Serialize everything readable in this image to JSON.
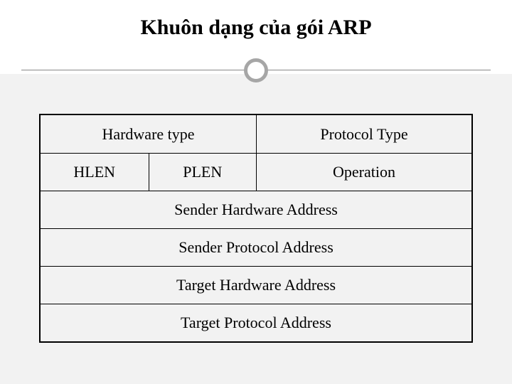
{
  "title": "Khuôn dạng của gói ARP",
  "rows": {
    "r1": {
      "c1": "Hardware type",
      "c2": "Protocol Type"
    },
    "r2": {
      "c1": "HLEN",
      "c2": "PLEN",
      "c3": "Operation"
    },
    "r3": "Sender Hardware Address",
    "r4": "Sender Protocol Address",
    "r5": "Target Hardware Address",
    "r6": "Target Protocol Address"
  },
  "style": {
    "title_color": "#000000",
    "title_fontsize": 30,
    "cell_fontsize": 22,
    "border_color": "#000000",
    "bg_lower": "#f2f2f2",
    "circle_border": "#a6a6a6",
    "hline_color": "#888888"
  }
}
